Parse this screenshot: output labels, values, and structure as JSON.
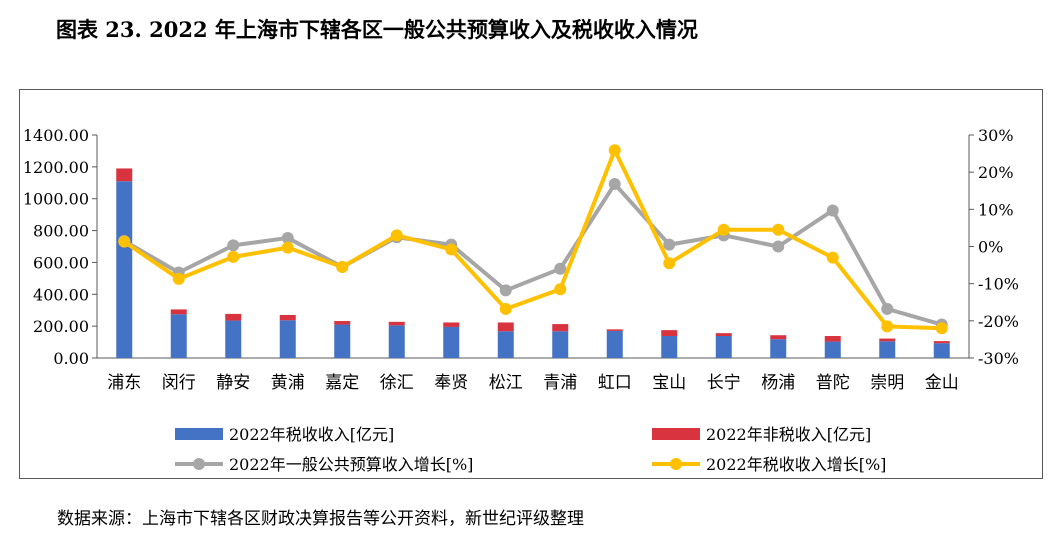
{
  "title": "图表 23. 2022 年上海市下辖各区一般公共预算收入及税收收入情况",
  "source": "数据来源：上海市下辖各区财政决算报告等公开资料，新世纪评级整理",
  "colors": {
    "tax": "#4472C4",
    "nontax": "#D9333F",
    "budget_growth": "#A6A6A6",
    "tax_growth": "#FFC000"
  },
  "chart_data": {
    "type": "bar",
    "stacked": true,
    "categories": [
      "浦东",
      "闵行",
      "静安",
      "黄浦",
      "嘉定",
      "徐汇",
      "奉贤",
      "松江",
      "青浦",
      "虹口",
      "宝山",
      "长宁",
      "杨浦",
      "普陀",
      "崇明",
      "金山"
    ],
    "series": [
      {
        "name": "2022年税收收入[亿元]",
        "type": "bar",
        "axis": "left",
        "values": [
          1110,
          275,
          235,
          237,
          210,
          205,
          195,
          168,
          168,
          170,
          138,
          138,
          118,
          103,
          105,
          93
        ]
      },
      {
        "name": "2022年非税收入[亿元]",
        "type": "bar",
        "axis": "left",
        "values": [
          80,
          30,
          42,
          33,
          22,
          22,
          28,
          55,
          45,
          10,
          37,
          18,
          25,
          35,
          17,
          13
        ]
      },
      {
        "name": "2022年一般公共预算收入增长[%]",
        "type": "line",
        "axis": "right",
        "values": [
          1.5,
          -7.0,
          0.3,
          2.3,
          -5.5,
          2.5,
          0.5,
          -11.8,
          -6.0,
          16.8,
          0.5,
          3.0,
          0.0,
          9.7,
          -16.8,
          -21.0
        ]
      },
      {
        "name": "2022年税收收入增长[%]",
        "type": "line",
        "axis": "right",
        "values": [
          1.3,
          -8.7,
          -2.8,
          -0.3,
          -5.5,
          3.0,
          -0.8,
          -16.8,
          -11.5,
          25.9,
          -4.5,
          4.5,
          4.5,
          -3.0,
          -21.5,
          -22.0
        ]
      }
    ],
    "y_left": {
      "min": 0,
      "max": 1400,
      "ticks": [
        "0.00",
        "200.00",
        "400.00",
        "600.00",
        "800.00",
        "1000.00",
        "1200.00",
        "1400.00"
      ]
    },
    "y_right": {
      "min": -30,
      "max": 30,
      "ticks": [
        "-30%",
        "-20%",
        "-10%",
        "0%",
        "10%",
        "20%",
        "30%"
      ]
    },
    "legend": "bottom",
    "grid": false
  }
}
